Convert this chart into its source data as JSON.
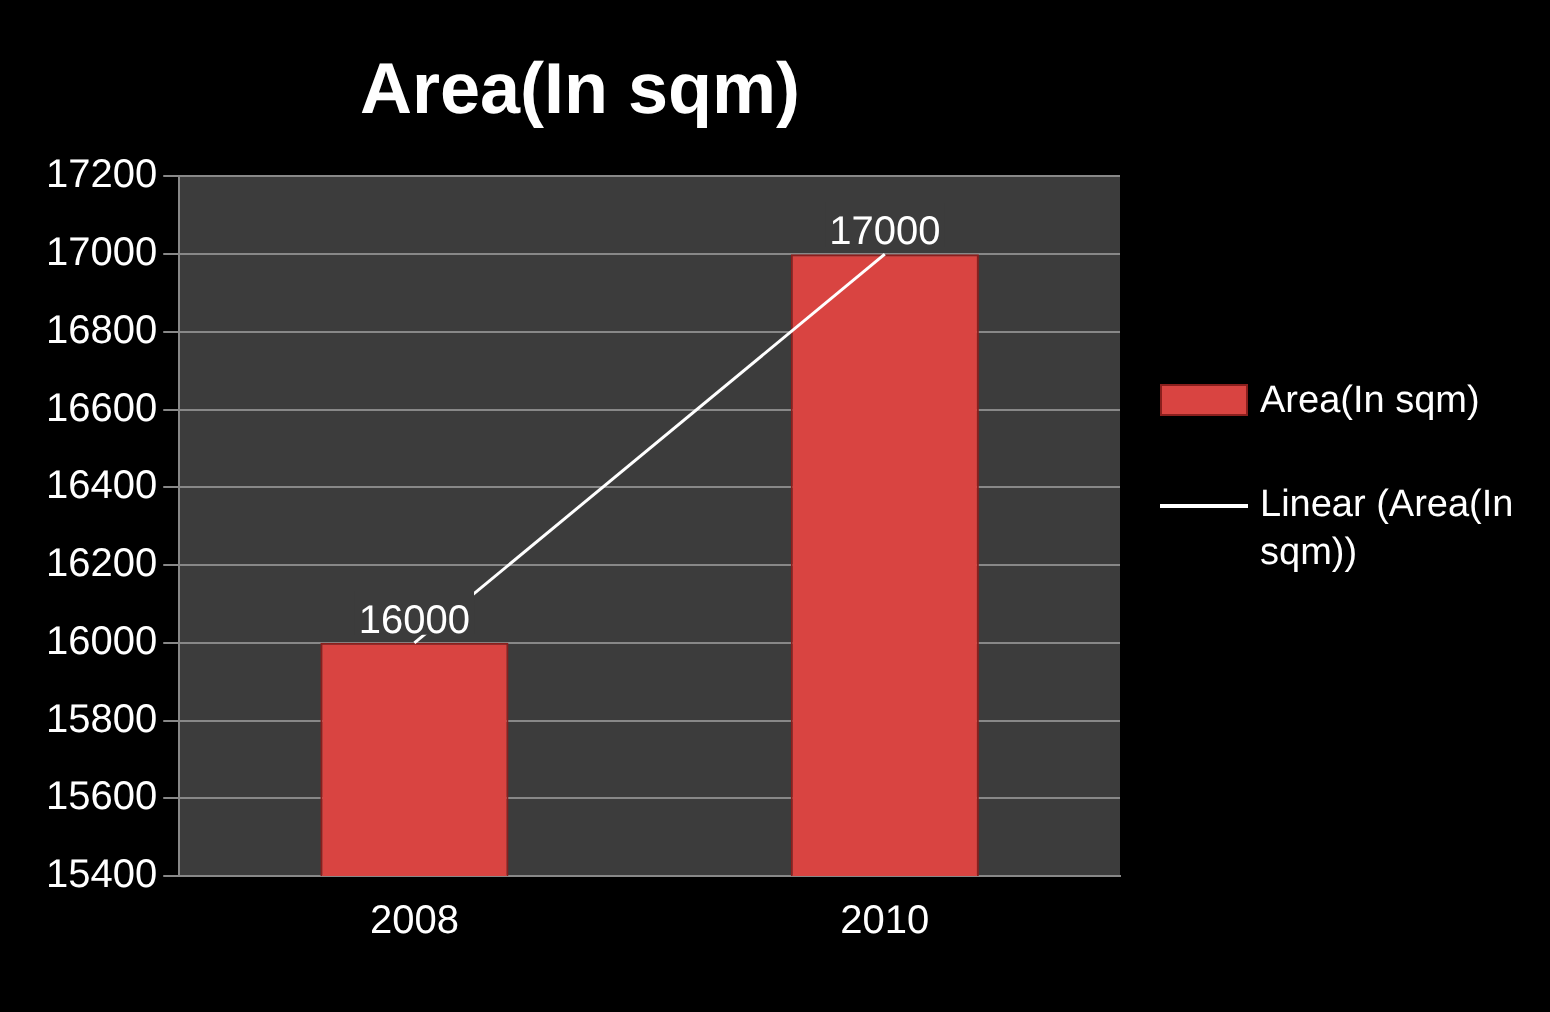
{
  "chart_data": {
    "type": "bar",
    "title": "Area(In sqm)",
    "categories": [
      "2008",
      "2010"
    ],
    "series": [
      {
        "name": "Area(In sqm)",
        "color": "#d94441",
        "values": [
          16000,
          17000
        ],
        "value_labels": [
          "16000",
          "17000"
        ]
      },
      {
        "name": "Linear (Area(In sqm))",
        "type": "line",
        "color": "#ffffff",
        "values": [
          16000,
          17000
        ]
      }
    ],
    "ylim": [
      15400,
      17200
    ],
    "yticks": [
      15400,
      15600,
      15800,
      16000,
      16200,
      16400,
      16600,
      16800,
      17000,
      17200
    ],
    "grid": "y",
    "legend": "right"
  }
}
